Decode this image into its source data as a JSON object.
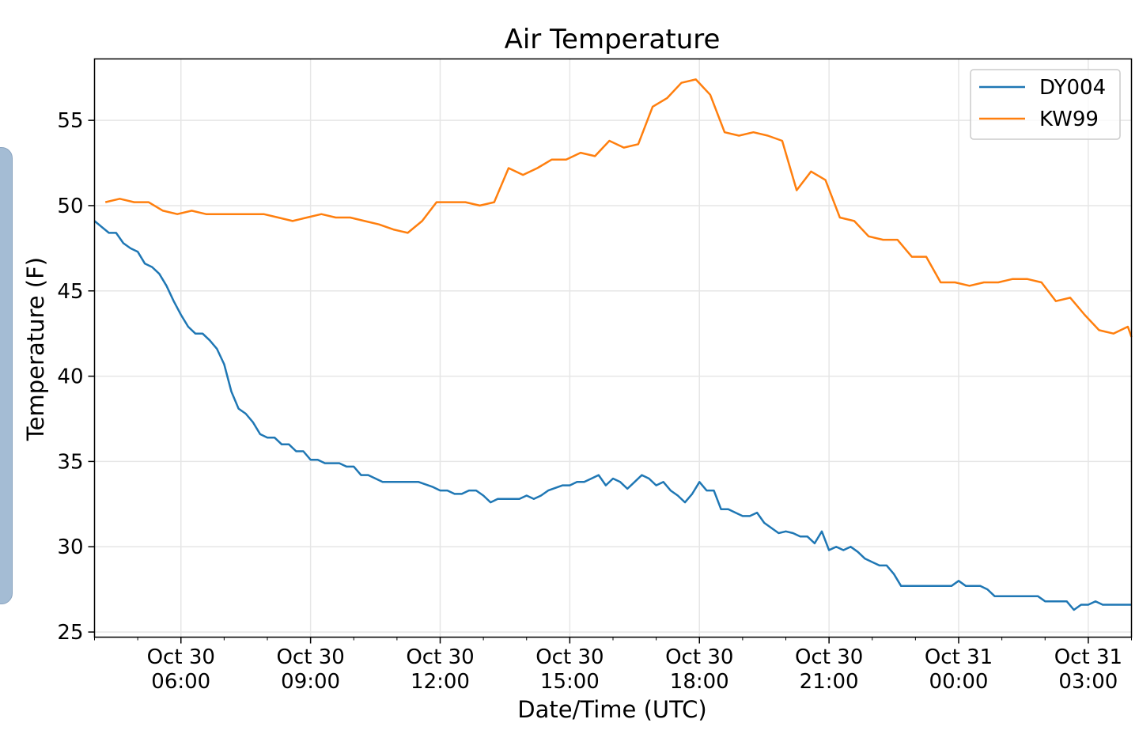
{
  "colors": {
    "DY004": "#1f77b4",
    "KW99": "#ff7f0e",
    "grid": "#e6e6e6",
    "side_tab": "#a4bcd4"
  },
  "chart_data": {
    "type": "line",
    "title": "Air Temperature",
    "xlabel": "Date/Time (UTC)",
    "ylabel": "Temperature (F)",
    "xlim": [
      "2018-10-30T04:00",
      "2018-10-31T04:00"
    ],
    "ylim": [
      24.7,
      58.6
    ],
    "grid": true,
    "legend_position": "upper right",
    "yticks": [
      25,
      30,
      35,
      40,
      45,
      50,
      55
    ],
    "xticks": [
      {
        "t": "2018-10-30T06:00",
        "line1": "Oct 30",
        "line2": "06:00"
      },
      {
        "t": "2018-10-30T09:00",
        "line1": "Oct 30",
        "line2": "09:00"
      },
      {
        "t": "2018-10-30T12:00",
        "line1": "Oct 30",
        "line2": "12:00"
      },
      {
        "t": "2018-10-30T15:00",
        "line1": "Oct 30",
        "line2": "15:00"
      },
      {
        "t": "2018-10-30T18:00",
        "line1": "Oct 30",
        "line2": "18:00"
      },
      {
        "t": "2018-10-30T21:00",
        "line1": "Oct 30",
        "line2": "21:00"
      },
      {
        "t": "2018-10-31T00:00",
        "line1": "Oct 31",
        "line2": "00:00"
      },
      {
        "t": "2018-10-31T03:00",
        "line1": "Oct 31",
        "line2": "03:00"
      }
    ],
    "series": [
      {
        "name": "DY004",
        "color": "#1f77b4",
        "points": [
          [
            "2018-10-30T04:00",
            49.1
          ],
          [
            "2018-10-30T04:20",
            48.4
          ],
          [
            "2018-10-30T04:30",
            48.4
          ],
          [
            "2018-10-30T04:40",
            47.8
          ],
          [
            "2018-10-30T04:50",
            47.5
          ],
          [
            "2018-10-30T05:00",
            47.3
          ],
          [
            "2018-10-30T05:10",
            46.6
          ],
          [
            "2018-10-30T05:20",
            46.4
          ],
          [
            "2018-10-30T05:30",
            46.0
          ],
          [
            "2018-10-30T05:40",
            45.3
          ],
          [
            "2018-10-30T05:50",
            44.4
          ],
          [
            "2018-10-30T06:00",
            43.6
          ],
          [
            "2018-10-30T06:10",
            42.9
          ],
          [
            "2018-10-30T06:20",
            42.5
          ],
          [
            "2018-10-30T06:30",
            42.5
          ],
          [
            "2018-10-30T06:40",
            42.1
          ],
          [
            "2018-10-30T06:50",
            41.6
          ],
          [
            "2018-10-30T07:00",
            40.7
          ],
          [
            "2018-10-30T07:10",
            39.1
          ],
          [
            "2018-10-30T07:20",
            38.1
          ],
          [
            "2018-10-30T07:30",
            37.8
          ],
          [
            "2018-10-30T07:40",
            37.3
          ],
          [
            "2018-10-30T07:50",
            36.6
          ],
          [
            "2018-10-30T08:00",
            36.4
          ],
          [
            "2018-10-30T08:10",
            36.4
          ],
          [
            "2018-10-30T08:20",
            36.0
          ],
          [
            "2018-10-30T08:30",
            36.0
          ],
          [
            "2018-10-30T08:40",
            35.6
          ],
          [
            "2018-10-30T08:50",
            35.6
          ],
          [
            "2018-10-30T09:00",
            35.1
          ],
          [
            "2018-10-30T09:10",
            35.1
          ],
          [
            "2018-10-30T09:20",
            34.9
          ],
          [
            "2018-10-30T09:40",
            34.9
          ],
          [
            "2018-10-30T09:50",
            34.7
          ],
          [
            "2018-10-30T10:00",
            34.7
          ],
          [
            "2018-10-30T10:10",
            34.2
          ],
          [
            "2018-10-30T10:20",
            34.2
          ],
          [
            "2018-10-30T10:40",
            33.8
          ],
          [
            "2018-10-30T11:30",
            33.8
          ],
          [
            "2018-10-30T11:50",
            33.5
          ],
          [
            "2018-10-30T12:00",
            33.3
          ],
          [
            "2018-10-30T12:10",
            33.3
          ],
          [
            "2018-10-30T12:20",
            33.1
          ],
          [
            "2018-10-30T12:30",
            33.1
          ],
          [
            "2018-10-30T12:40",
            33.3
          ],
          [
            "2018-10-30T12:50",
            33.3
          ],
          [
            "2018-10-30T13:00",
            33.0
          ],
          [
            "2018-10-30T13:10",
            32.6
          ],
          [
            "2018-10-30T13:20",
            32.8
          ],
          [
            "2018-10-30T13:50",
            32.8
          ],
          [
            "2018-10-30T14:00",
            33.0
          ],
          [
            "2018-10-30T14:10",
            32.8
          ],
          [
            "2018-10-30T14:20",
            33.0
          ],
          [
            "2018-10-30T14:30",
            33.3
          ],
          [
            "2018-10-30T14:50",
            33.6
          ],
          [
            "2018-10-30T15:00",
            33.6
          ],
          [
            "2018-10-30T15:10",
            33.8
          ],
          [
            "2018-10-30T15:20",
            33.8
          ],
          [
            "2018-10-30T15:30",
            34.0
          ],
          [
            "2018-10-30T15:40",
            34.2
          ],
          [
            "2018-10-30T15:50",
            33.6
          ],
          [
            "2018-10-30T16:00",
            34.0
          ],
          [
            "2018-10-30T16:10",
            33.8
          ],
          [
            "2018-10-30T16:20",
            33.4
          ],
          [
            "2018-10-30T16:30",
            33.8
          ],
          [
            "2018-10-30T16:40",
            34.2
          ],
          [
            "2018-10-30T16:50",
            34.0
          ],
          [
            "2018-10-30T17:00",
            33.6
          ],
          [
            "2018-10-30T17:10",
            33.8
          ],
          [
            "2018-10-30T17:20",
            33.3
          ],
          [
            "2018-10-30T17:30",
            33.0
          ],
          [
            "2018-10-30T17:40",
            32.6
          ],
          [
            "2018-10-30T17:50",
            33.1
          ],
          [
            "2018-10-30T18:00",
            33.8
          ],
          [
            "2018-10-30T18:10",
            33.3
          ],
          [
            "2018-10-30T18:20",
            33.3
          ],
          [
            "2018-10-30T18:30",
            32.2
          ],
          [
            "2018-10-30T18:40",
            32.2
          ],
          [
            "2018-10-30T18:50",
            32.0
          ],
          [
            "2018-10-30T19:00",
            31.8
          ],
          [
            "2018-10-30T19:10",
            31.8
          ],
          [
            "2018-10-30T19:20",
            32.0
          ],
          [
            "2018-10-30T19:30",
            31.4
          ],
          [
            "2018-10-30T19:40",
            31.1
          ],
          [
            "2018-10-30T19:50",
            30.8
          ],
          [
            "2018-10-30T20:00",
            30.9
          ],
          [
            "2018-10-30T20:10",
            30.8
          ],
          [
            "2018-10-30T20:20",
            30.6
          ],
          [
            "2018-10-30T20:30",
            30.6
          ],
          [
            "2018-10-30T20:40",
            30.2
          ],
          [
            "2018-10-30T20:50",
            30.9
          ],
          [
            "2018-10-30T21:00",
            29.8
          ],
          [
            "2018-10-30T21:10",
            30.0
          ],
          [
            "2018-10-30T21:20",
            29.8
          ],
          [
            "2018-10-30T21:30",
            30.0
          ],
          [
            "2018-10-30T21:40",
            29.7
          ],
          [
            "2018-10-30T21:50",
            29.3
          ],
          [
            "2018-10-30T22:00",
            29.1
          ],
          [
            "2018-10-30T22:10",
            28.9
          ],
          [
            "2018-10-30T22:20",
            28.9
          ],
          [
            "2018-10-30T22:30",
            28.4
          ],
          [
            "2018-10-30T22:40",
            27.7
          ],
          [
            "2018-10-30T23:50",
            27.7
          ],
          [
            "2018-10-31T00:00",
            28.0
          ],
          [
            "2018-10-31T00:10",
            27.7
          ],
          [
            "2018-10-31T00:30",
            27.7
          ],
          [
            "2018-10-31T00:40",
            27.5
          ],
          [
            "2018-10-31T00:50",
            27.1
          ],
          [
            "2018-10-31T01:50",
            27.1
          ],
          [
            "2018-10-31T02:00",
            26.8
          ],
          [
            "2018-10-31T02:30",
            26.8
          ],
          [
            "2018-10-31T02:40",
            26.3
          ],
          [
            "2018-10-31T02:50",
            26.6
          ],
          [
            "2018-10-31T03:00",
            26.6
          ],
          [
            "2018-10-31T03:10",
            26.8
          ],
          [
            "2018-10-31T03:20",
            26.6
          ],
          [
            "2018-10-31T04:00",
            26.6
          ]
        ]
      },
      {
        "name": "KW99",
        "color": "#ff7f0e",
        "points": [
          [
            "2018-10-30T04:15",
            50.2
          ],
          [
            "2018-10-30T04:35",
            50.4
          ],
          [
            "2018-10-30T04:55",
            50.2
          ],
          [
            "2018-10-30T05:15",
            50.2
          ],
          [
            "2018-10-30T05:35",
            49.7
          ],
          [
            "2018-10-30T05:55",
            49.5
          ],
          [
            "2018-10-30T06:15",
            49.7
          ],
          [
            "2018-10-30T06:35",
            49.5
          ],
          [
            "2018-10-30T07:55",
            49.5
          ],
          [
            "2018-10-30T08:15",
            49.3
          ],
          [
            "2018-10-30T08:35",
            49.1
          ],
          [
            "2018-10-30T08:55",
            49.3
          ],
          [
            "2018-10-30T09:15",
            49.5
          ],
          [
            "2018-10-30T09:35",
            49.3
          ],
          [
            "2018-10-30T09:55",
            49.3
          ],
          [
            "2018-10-30T10:15",
            49.1
          ],
          [
            "2018-10-30T10:35",
            48.9
          ],
          [
            "2018-10-30T10:55",
            48.6
          ],
          [
            "2018-10-30T11:15",
            48.4
          ],
          [
            "2018-10-30T11:35",
            49.1
          ],
          [
            "2018-10-30T11:55",
            50.2
          ],
          [
            "2018-10-30T12:15",
            50.2
          ],
          [
            "2018-10-30T12:35",
            50.2
          ],
          [
            "2018-10-30T12:55",
            50.0
          ],
          [
            "2018-10-30T13:15",
            50.2
          ],
          [
            "2018-10-30T13:35",
            52.2
          ],
          [
            "2018-10-30T13:55",
            51.8
          ],
          [
            "2018-10-30T14:15",
            52.2
          ],
          [
            "2018-10-30T14:35",
            52.7
          ],
          [
            "2018-10-30T14:55",
            52.7
          ],
          [
            "2018-10-30T15:15",
            53.1
          ],
          [
            "2018-10-30T15:35",
            52.9
          ],
          [
            "2018-10-30T15:55",
            53.8
          ],
          [
            "2018-10-30T16:15",
            53.4
          ],
          [
            "2018-10-30T16:35",
            53.6
          ],
          [
            "2018-10-30T16:55",
            55.8
          ],
          [
            "2018-10-30T17:15",
            56.3
          ],
          [
            "2018-10-30T17:35",
            57.2
          ],
          [
            "2018-10-30T17:55",
            57.4
          ],
          [
            "2018-10-30T18:15",
            56.5
          ],
          [
            "2018-10-30T18:35",
            54.3
          ],
          [
            "2018-10-30T18:55",
            54.1
          ],
          [
            "2018-10-30T19:15",
            54.3
          ],
          [
            "2018-10-30T19:35",
            54.1
          ],
          [
            "2018-10-30T19:55",
            53.8
          ],
          [
            "2018-10-30T20:15",
            50.9
          ],
          [
            "2018-10-30T20:35",
            52.0
          ],
          [
            "2018-10-30T20:55",
            51.5
          ],
          [
            "2018-10-30T21:15",
            49.3
          ],
          [
            "2018-10-30T21:35",
            49.1
          ],
          [
            "2018-10-30T21:55",
            48.2
          ],
          [
            "2018-10-30T22:15",
            48.0
          ],
          [
            "2018-10-30T22:35",
            48.0
          ],
          [
            "2018-10-30T22:55",
            47.0
          ],
          [
            "2018-10-30T23:15",
            47.0
          ],
          [
            "2018-10-30T23:35",
            45.5
          ],
          [
            "2018-10-30T23:55",
            45.5
          ],
          [
            "2018-10-31T00:15",
            45.3
          ],
          [
            "2018-10-31T00:35",
            45.5
          ],
          [
            "2018-10-31T00:55",
            45.5
          ],
          [
            "2018-10-31T01:15",
            45.7
          ],
          [
            "2018-10-31T01:35",
            45.7
          ],
          [
            "2018-10-31T01:55",
            45.5
          ],
          [
            "2018-10-31T02:15",
            44.4
          ],
          [
            "2018-10-31T02:35",
            44.6
          ],
          [
            "2018-10-31T02:55",
            43.6
          ],
          [
            "2018-10-31T03:15",
            42.7
          ],
          [
            "2018-10-31T03:35",
            42.5
          ],
          [
            "2018-10-31T03:55",
            42.9
          ],
          [
            "2018-10-31T04:00",
            42.3
          ]
        ]
      }
    ]
  }
}
